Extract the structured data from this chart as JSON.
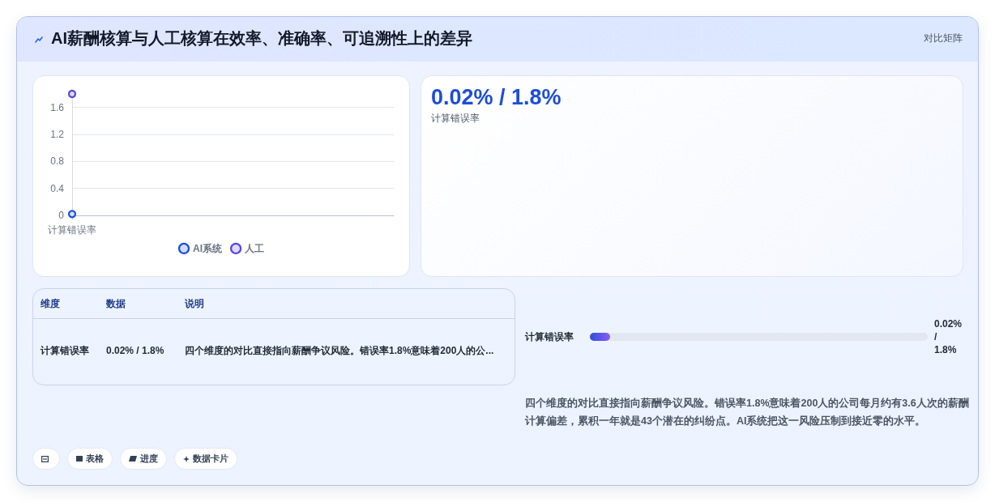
{
  "chart_data": [
    {
      "type": "other",
      "title": "AI薪酬核算与人工核算在效率、准确率、可追溯性上的差异",
      "subtitle": "对比矩阵"
    },
    {
      "type": "line",
      "categories": [
        "计算错误率"
      ],
      "series": [
        {
          "name": "AI系统",
          "color": "#1d4ed8",
          "values": [
            0.02
          ]
        },
        {
          "name": "人工",
          "color": "#5b47e0",
          "values": [
            1.8
          ]
        }
      ],
      "ylim": [
        0,
        1.8
      ],
      "yticks": [
        0,
        0.4,
        0.8,
        1.2,
        1.6
      ],
      "grid": "y",
      "legend": "bottom",
      "marker": "circle"
    },
    {
      "type": "other",
      "title": "0.02% / 1.8%",
      "subtitle": "计算错误率"
    },
    {
      "type": "other",
      "categories": [
        "维度",
        "数据",
        "说明"
      ],
      "annotations": [
        "计算错误率",
        "0.02% / 1.8%",
        "四个维度的对比直接指向薪酬争议风险。错误率1.8%意味着200人的公..."
      ]
    },
    {
      "type": "other",
      "categories": [
        "计算错误率"
      ],
      "annotations": [
        "0.02% / 1.8%",
        "四个维度的对比直接指向薪酬争议风险。错误率1.8%意味着200人的公司每月约有3.6人次的薪酬计算偏差，累积一年就是43个潜在的纠纷点。AI系统把这一风险压制到接近零的水平。"
      ]
    },
    {
      "type": "other",
      "annotations": [
        "表格",
        "进度",
        "数据卡片"
      ]
    }
  ]
}
